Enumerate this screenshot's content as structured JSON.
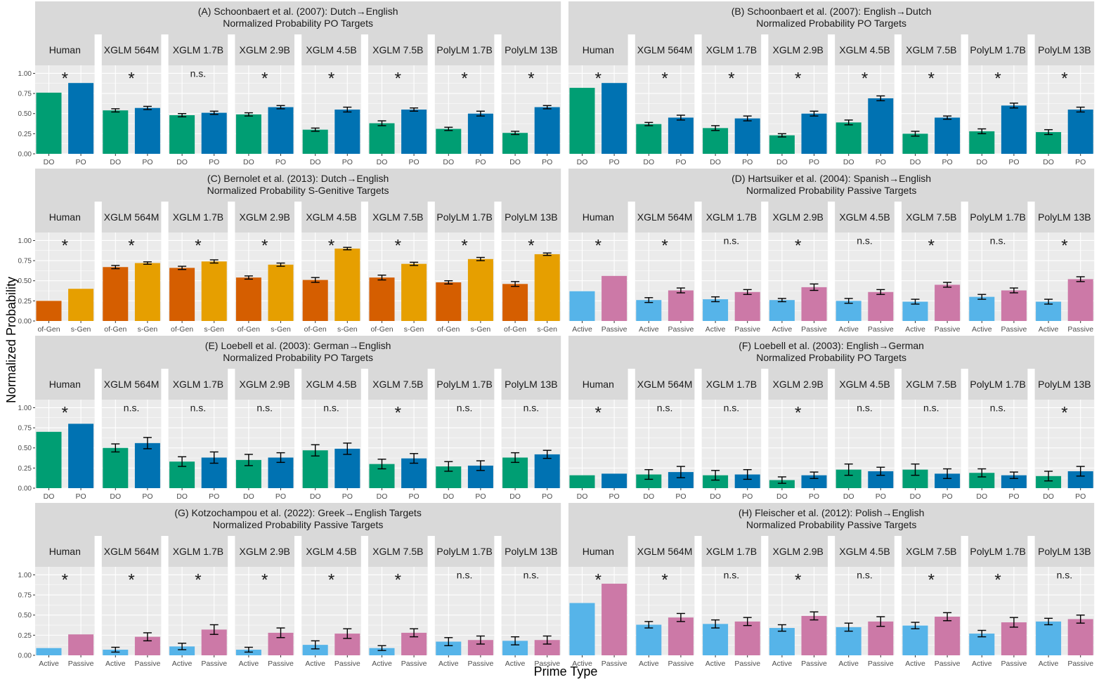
{
  "y_label": "Normalized Probability",
  "x_label": "Prime Type",
  "colors": {
    "DO": "#009E73",
    "PO": "#0072B2",
    "of-Gen": "#D55E00",
    "s-Gen": "#E69F00",
    "Active": "#56B4E9",
    "Passive": "#CC79A7",
    "strip": "#d9d9d9",
    "panel": "#ebebeb",
    "grid": "#ffffff"
  },
  "chart_data": [
    {
      "type": "bar",
      "panel": "A",
      "title": "(A) Schoonbaert et al. (2007): Dutch→English",
      "subtitle": "Normalized Probability PO Targets",
      "ylim": [
        0,
        1.1
      ],
      "yticks": [
        "0.00",
        "0.25",
        "0.50",
        "0.75",
        "1.00"
      ],
      "categories": [
        "DO",
        "PO"
      ],
      "facets": [
        {
          "model": "Human",
          "sig": "*",
          "values": [
            0.76,
            0.88
          ],
          "errors": null
        },
        {
          "model": "XGLM 564M",
          "sig": "*",
          "values": [
            0.54,
            0.57
          ],
          "errors": [
            0.02,
            0.02
          ]
        },
        {
          "model": "XGLM 1.7B",
          "sig": "n.s.",
          "values": [
            0.48,
            0.51
          ],
          "errors": [
            0.02,
            0.02
          ]
        },
        {
          "model": "XGLM 2.9B",
          "sig": "*",
          "values": [
            0.49,
            0.58
          ],
          "errors": [
            0.02,
            0.02
          ]
        },
        {
          "model": "XGLM 4.5B",
          "sig": "*",
          "values": [
            0.3,
            0.55
          ],
          "errors": [
            0.02,
            0.03
          ]
        },
        {
          "model": "XGLM 7.5B",
          "sig": "*",
          "values": [
            0.38,
            0.55
          ],
          "errors": [
            0.03,
            0.02
          ]
        },
        {
          "model": "PolyLM 1.7B",
          "sig": "*",
          "values": [
            0.31,
            0.5
          ],
          "errors": [
            0.02,
            0.03
          ]
        },
        {
          "model": "PolyLM 13B",
          "sig": "*",
          "values": [
            0.26,
            0.58
          ],
          "errors": [
            0.02,
            0.02
          ]
        }
      ]
    },
    {
      "type": "bar",
      "panel": "B",
      "title": "(B) Schoonbaert et al. (2007): English→Dutch",
      "subtitle": "Normalized Probability PO Targets",
      "ylim": [
        0,
        1.1
      ],
      "yticks": [
        "0.00",
        "0.25",
        "0.50",
        "0.75",
        "1.00"
      ],
      "categories": [
        "DO",
        "PO"
      ],
      "facets": [
        {
          "model": "Human",
          "sig": "*",
          "values": [
            0.82,
            0.88
          ],
          "errors": null
        },
        {
          "model": "XGLM 564M",
          "sig": "*",
          "values": [
            0.37,
            0.45
          ],
          "errors": [
            0.02,
            0.03
          ]
        },
        {
          "model": "XGLM 1.7B",
          "sig": "*",
          "values": [
            0.32,
            0.44
          ],
          "errors": [
            0.03,
            0.03
          ]
        },
        {
          "model": "XGLM 2.9B",
          "sig": "*",
          "values": [
            0.23,
            0.5
          ],
          "errors": [
            0.02,
            0.03
          ]
        },
        {
          "model": "XGLM 4.5B",
          "sig": "*",
          "values": [
            0.39,
            0.69
          ],
          "errors": [
            0.03,
            0.03
          ]
        },
        {
          "model": "XGLM 7.5B",
          "sig": "*",
          "values": [
            0.25,
            0.45
          ],
          "errors": [
            0.03,
            0.02
          ]
        },
        {
          "model": "PolyLM 1.7B",
          "sig": "*",
          "values": [
            0.28,
            0.6
          ],
          "errors": [
            0.03,
            0.03
          ]
        },
        {
          "model": "PolyLM 13B",
          "sig": "*",
          "values": [
            0.27,
            0.55
          ],
          "errors": [
            0.03,
            0.03
          ]
        }
      ]
    },
    {
      "type": "bar",
      "panel": "C",
      "title": "(C) Bernolet et al. (2013): Dutch→English",
      "subtitle": "Normalized Probability S-Genitive Targets",
      "ylim": [
        0,
        1.1
      ],
      "yticks": [
        "0.00",
        "0.25",
        "0.50",
        "0.75",
        "1.00"
      ],
      "categories": [
        "of-Gen",
        "s-Gen"
      ],
      "facets": [
        {
          "model": "Human",
          "sig": "*",
          "values": [
            0.25,
            0.4
          ],
          "errors": null
        },
        {
          "model": "XGLM 564M",
          "sig": "*",
          "values": [
            0.67,
            0.72
          ],
          "errors": [
            0.02,
            0.015
          ]
        },
        {
          "model": "XGLM 1.7B",
          "sig": "*",
          "values": [
            0.66,
            0.74
          ],
          "errors": [
            0.02,
            0.02
          ]
        },
        {
          "model": "XGLM 2.9B",
          "sig": "*",
          "values": [
            0.54,
            0.7
          ],
          "errors": [
            0.02,
            0.02
          ]
        },
        {
          "model": "XGLM 4.5B",
          "sig": "*",
          "values": [
            0.51,
            0.9
          ],
          "errors": [
            0.03,
            0.015
          ]
        },
        {
          "model": "XGLM 7.5B",
          "sig": "*",
          "values": [
            0.54,
            0.71
          ],
          "errors": [
            0.03,
            0.02
          ]
        },
        {
          "model": "PolyLM 1.7B",
          "sig": "*",
          "values": [
            0.48,
            0.77
          ],
          "errors": [
            0.02,
            0.02
          ]
        },
        {
          "model": "PolyLM 13B",
          "sig": "*",
          "values": [
            0.46,
            0.83
          ],
          "errors": [
            0.03,
            0.015
          ]
        }
      ]
    },
    {
      "type": "bar",
      "panel": "D",
      "title": "(D) Hartsuiker et al. (2004): Spanish→English",
      "subtitle": "Normalized Probability Passive Targets",
      "ylim": [
        0,
        1.1
      ],
      "yticks": [
        "0.00",
        "0.25",
        "0.50",
        "0.75",
        "1.00"
      ],
      "categories": [
        "Active",
        "Passive"
      ],
      "facets": [
        {
          "model": "Human",
          "sig": "*",
          "values": [
            0.37,
            0.56
          ],
          "errors": null
        },
        {
          "model": "XGLM 564M",
          "sig": "*",
          "values": [
            0.26,
            0.38
          ],
          "errors": [
            0.03,
            0.03
          ]
        },
        {
          "model": "XGLM 1.7B",
          "sig": "n.s.",
          "values": [
            0.27,
            0.36
          ],
          "errors": [
            0.03,
            0.03
          ]
        },
        {
          "model": "XGLM 2.9B",
          "sig": "*",
          "values": [
            0.26,
            0.42
          ],
          "errors": [
            0.02,
            0.04
          ]
        },
        {
          "model": "XGLM 4.5B",
          "sig": "n.s.",
          "values": [
            0.25,
            0.36
          ],
          "errors": [
            0.03,
            0.03
          ]
        },
        {
          "model": "XGLM 7.5B",
          "sig": "*",
          "values": [
            0.24,
            0.45
          ],
          "errors": [
            0.03,
            0.03
          ]
        },
        {
          "model": "PolyLM 1.7B",
          "sig": "n.s.",
          "values": [
            0.3,
            0.38
          ],
          "errors": [
            0.03,
            0.03
          ]
        },
        {
          "model": "PolyLM 13B",
          "sig": "*",
          "values": [
            0.24,
            0.52
          ],
          "errors": [
            0.03,
            0.03
          ]
        }
      ]
    },
    {
      "type": "bar",
      "panel": "E",
      "title": "(E) Loebell et al. (2003): German→English",
      "subtitle": "Normalized Probability PO Targets",
      "ylim": [
        0,
        1.1
      ],
      "yticks": [
        "0.00",
        "0.25",
        "0.50",
        "0.75",
        "1.00"
      ],
      "categories": [
        "DO",
        "PO"
      ],
      "facets": [
        {
          "model": "Human",
          "sig": "*",
          "values": [
            0.7,
            0.8
          ],
          "errors": null
        },
        {
          "model": "XGLM 564M",
          "sig": "n.s.",
          "values": [
            0.5,
            0.56
          ],
          "errors": [
            0.05,
            0.07
          ]
        },
        {
          "model": "XGLM 1.7B",
          "sig": "n.s.",
          "values": [
            0.33,
            0.38
          ],
          "errors": [
            0.06,
            0.07
          ]
        },
        {
          "model": "XGLM 2.9B",
          "sig": "n.s.",
          "values": [
            0.35,
            0.38
          ],
          "errors": [
            0.07,
            0.06
          ]
        },
        {
          "model": "XGLM 4.5B",
          "sig": "n.s.",
          "values": [
            0.47,
            0.49
          ],
          "errors": [
            0.07,
            0.07
          ]
        },
        {
          "model": "XGLM 7.5B",
          "sig": "*",
          "values": [
            0.3,
            0.37
          ],
          "errors": [
            0.06,
            0.06
          ]
        },
        {
          "model": "PolyLM 1.7B",
          "sig": "n.s.",
          "values": [
            0.27,
            0.28
          ],
          "errors": [
            0.06,
            0.06
          ]
        },
        {
          "model": "PolyLM 13B",
          "sig": "n.s.",
          "values": [
            0.38,
            0.42
          ],
          "errors": [
            0.06,
            0.05
          ]
        }
      ]
    },
    {
      "type": "bar",
      "panel": "F",
      "title": "(F) Loebell et al. (2003): English→German",
      "subtitle": "Normalized Probability PO Targets",
      "ylim": [
        0,
        1.1
      ],
      "yticks": [
        "0.00",
        "0.25",
        "0.50",
        "0.75",
        "1.00"
      ],
      "categories": [
        "DO",
        "PO"
      ],
      "facets": [
        {
          "model": "Human",
          "sig": "*",
          "values": [
            0.16,
            0.18
          ],
          "errors": null
        },
        {
          "model": "XGLM 564M",
          "sig": "n.s.",
          "values": [
            0.17,
            0.2
          ],
          "errors": [
            0.06,
            0.07
          ]
        },
        {
          "model": "XGLM 1.7B",
          "sig": "n.s.",
          "values": [
            0.16,
            0.17
          ],
          "errors": [
            0.06,
            0.06
          ]
        },
        {
          "model": "XGLM 2.9B",
          "sig": "*",
          "values": [
            0.1,
            0.16
          ],
          "errors": [
            0.04,
            0.04
          ]
        },
        {
          "model": "XGLM 4.5B",
          "sig": "n.s.",
          "values": [
            0.23,
            0.21
          ],
          "errors": [
            0.07,
            0.05
          ]
        },
        {
          "model": "XGLM 7.5B",
          "sig": "n.s.",
          "values": [
            0.23,
            0.18
          ],
          "errors": [
            0.07,
            0.06
          ]
        },
        {
          "model": "PolyLM 1.7B",
          "sig": "n.s.",
          "values": [
            0.19,
            0.16
          ],
          "errors": [
            0.05,
            0.04
          ]
        },
        {
          "model": "PolyLM 13B",
          "sig": "*",
          "values": [
            0.15,
            0.21
          ],
          "errors": [
            0.06,
            0.06
          ]
        }
      ]
    },
    {
      "type": "bar",
      "panel": "G",
      "title": "(G) Kotzochampou et al. (2022): Greek→English Targets",
      "subtitle": "Normalized Probability Passive Targets",
      "ylim": [
        0,
        1.1
      ],
      "yticks": [
        "0.00",
        "0.25",
        "0.50",
        "0.75",
        "1.00"
      ],
      "categories": [
        "Active",
        "Passive"
      ],
      "facets": [
        {
          "model": "Human",
          "sig": "*",
          "values": [
            0.09,
            0.26
          ],
          "errors": null
        },
        {
          "model": "XGLM 564M",
          "sig": "*",
          "values": [
            0.07,
            0.23
          ],
          "errors": [
            0.03,
            0.05
          ]
        },
        {
          "model": "XGLM 1.7B",
          "sig": "*",
          "values": [
            0.11,
            0.32
          ],
          "errors": [
            0.04,
            0.06
          ]
        },
        {
          "model": "XGLM 2.9B",
          "sig": "*",
          "values": [
            0.07,
            0.28
          ],
          "errors": [
            0.03,
            0.06
          ]
        },
        {
          "model": "XGLM 4.5B",
          "sig": "*",
          "values": [
            0.13,
            0.27
          ],
          "errors": [
            0.05,
            0.06
          ]
        },
        {
          "model": "XGLM 7.5B",
          "sig": "*",
          "values": [
            0.09,
            0.28
          ],
          "errors": [
            0.03,
            0.05
          ]
        },
        {
          "model": "PolyLM 1.7B",
          "sig": "n.s.",
          "values": [
            0.17,
            0.19
          ],
          "errors": [
            0.05,
            0.05
          ]
        },
        {
          "model": "PolyLM 13B",
          "sig": "n.s.",
          "values": [
            0.18,
            0.19
          ],
          "errors": [
            0.05,
            0.05
          ]
        }
      ]
    },
    {
      "type": "bar",
      "panel": "H",
      "title": "(H) Fleischer et al. (2012): Polish→English",
      "subtitle": "Normalized Probability Passive Targets",
      "ylim": [
        0,
        1.1
      ],
      "yticks": [
        "0.00",
        "0.25",
        "0.50",
        "0.75",
        "1.00"
      ],
      "categories": [
        "Active",
        "Passive"
      ],
      "facets": [
        {
          "model": "Human",
          "sig": "*",
          "values": [
            0.65,
            0.89
          ],
          "errors": null
        },
        {
          "model": "XGLM 564M",
          "sig": "*",
          "values": [
            0.38,
            0.47
          ],
          "errors": [
            0.04,
            0.05
          ]
        },
        {
          "model": "XGLM 1.7B",
          "sig": "n.s.",
          "values": [
            0.39,
            0.42
          ],
          "errors": [
            0.05,
            0.05
          ]
        },
        {
          "model": "XGLM 2.9B",
          "sig": "*",
          "values": [
            0.34,
            0.49
          ],
          "errors": [
            0.04,
            0.05
          ]
        },
        {
          "model": "XGLM 4.5B",
          "sig": "n.s.",
          "values": [
            0.35,
            0.42
          ],
          "errors": [
            0.05,
            0.06
          ]
        },
        {
          "model": "XGLM 7.5B",
          "sig": "*",
          "values": [
            0.37,
            0.48
          ],
          "errors": [
            0.04,
            0.05
          ]
        },
        {
          "model": "PolyLM 1.7B",
          "sig": "*",
          "values": [
            0.27,
            0.41
          ],
          "errors": [
            0.04,
            0.06
          ]
        },
        {
          "model": "PolyLM 13B",
          "sig": "n.s.",
          "values": [
            0.42,
            0.45
          ],
          "errors": [
            0.04,
            0.05
          ]
        }
      ]
    }
  ]
}
